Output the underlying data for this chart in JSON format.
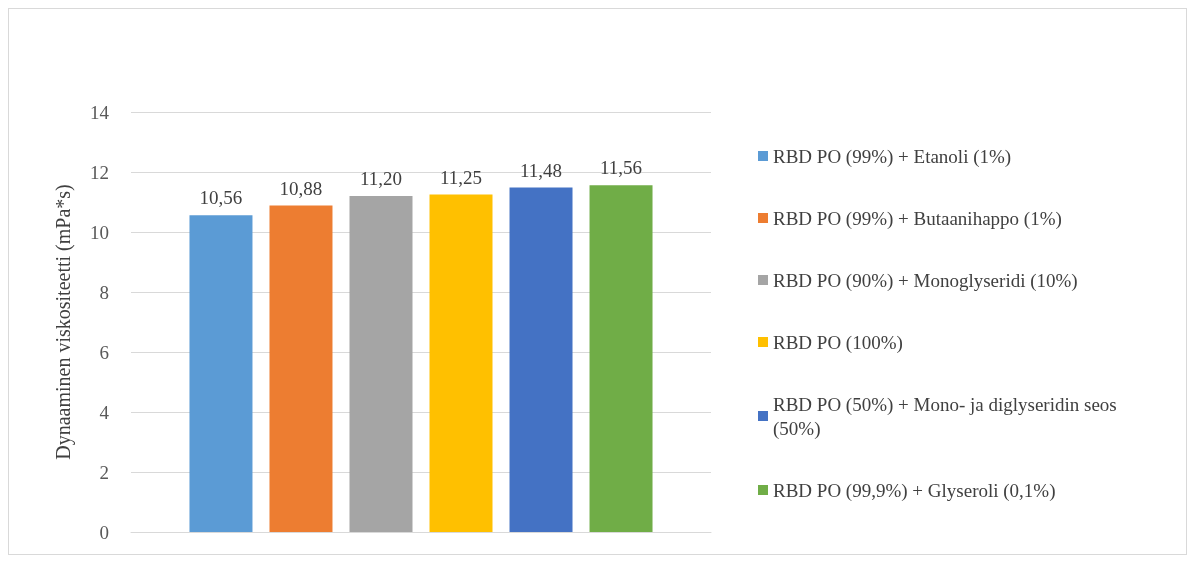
{
  "chart_data": {
    "type": "bar",
    "ylabel": "Dynaaminen viskositeetti (mPa*s)",
    "categories": [
      null
    ],
    "series": [
      {
        "name": "RBD PO (99%) + Etanoli (1%)",
        "color": "#5b9bd5",
        "values": [
          10.56
        ],
        "value_labels": [
          "10,56"
        ]
      },
      {
        "name": "RBD PO (99%) + Butaanihappo (1%)",
        "color": "#ed7d31",
        "values": [
          10.88
        ],
        "value_labels": [
          "10,88"
        ]
      },
      {
        "name": "RBD PO (90%) + Monoglyseridi (10%)",
        "color": "#a5a5a5",
        "values": [
          11.2
        ],
        "value_labels": [
          "11,20"
        ]
      },
      {
        "name": "RBD PO (100%)",
        "color": "#ffc000",
        "values": [
          11.25
        ],
        "value_labels": [
          "11,25"
        ]
      },
      {
        "name": "RBD PO (50%) + Mono- ja diglyseridin seos  (50%)",
        "color": "#4472c4",
        "values": [
          11.48
        ],
        "value_labels": [
          "11,48"
        ]
      },
      {
        "name": "RBD PO (99,9%) + Glyseroli (0,1%)",
        "color": "#70ad47",
        "values": [
          11.56
        ],
        "value_labels": [
          "11,56"
        ]
      }
    ],
    "ylim": [
      0,
      14
    ],
    "yticks": [
      0,
      2,
      4,
      6,
      8,
      10,
      12,
      14
    ],
    "grid": "y",
    "legend": "right"
  }
}
